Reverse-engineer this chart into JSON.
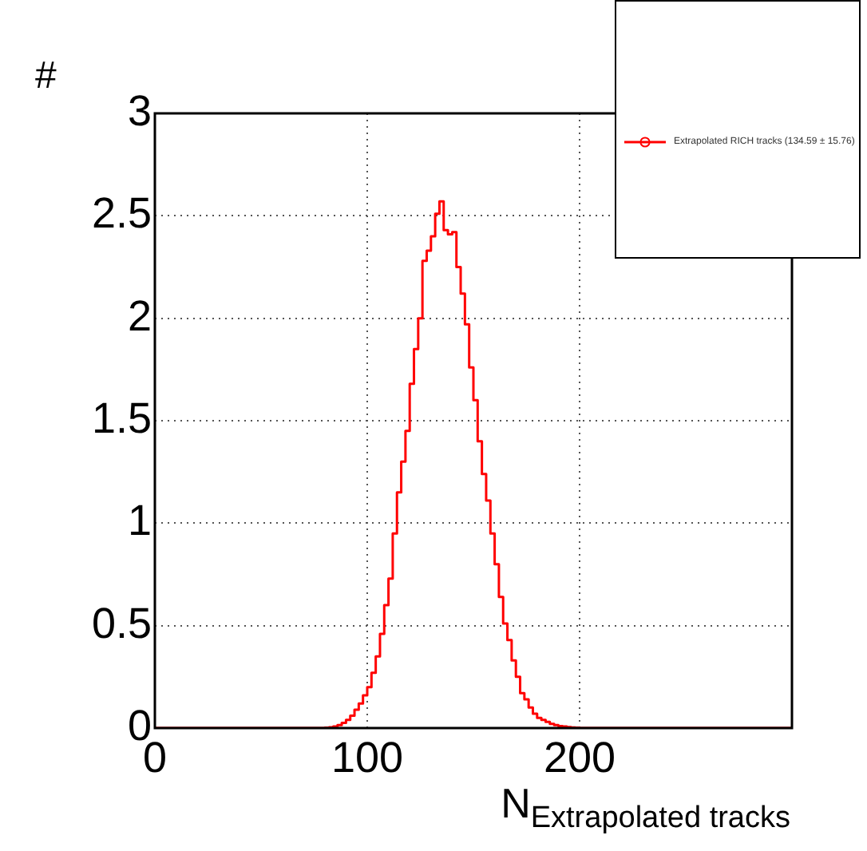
{
  "chart_data": {
    "type": "histogram",
    "xlabel": "N$_{Extrapolated tracks}$",
    "ylabel": "#",
    "bins": [
      0,
      80,
      82,
      84,
      86,
      88,
      90,
      92,
      94,
      96,
      98,
      100,
      102,
      104,
      106,
      108,
      110,
      112,
      114,
      116,
      118,
      120,
      122,
      124,
      126,
      128,
      130,
      132,
      134,
      136,
      138,
      140,
      142,
      144,
      146,
      148,
      150,
      152,
      154,
      156,
      158,
      160,
      162,
      164,
      166,
      168,
      170,
      172,
      174,
      176,
      178,
      180,
      182,
      184,
      186,
      188,
      190,
      192,
      194,
      196,
      198,
      200,
      300
    ],
    "series": [
      {
        "name": "Extrapolated RICH tracks (134.59 ± 15.76)",
        "color": "#ff0000",
        "values": [
          0,
          0.002,
          0.004,
          0.008,
          0.015,
          0.025,
          0.04,
          0.06,
          0.09,
          0.12,
          0.16,
          0.2,
          0.27,
          0.35,
          0.46,
          0.6,
          0.73,
          0.95,
          1.15,
          1.3,
          1.45,
          1.68,
          1.85,
          2.0,
          2.28,
          2.33,
          2.4,
          2.51,
          2.57,
          2.43,
          2.41,
          2.42,
          2.25,
          2.12,
          1.97,
          1.76,
          1.6,
          1.4,
          1.24,
          1.11,
          0.95,
          0.8,
          0.64,
          0.51,
          0.43,
          0.33,
          0.25,
          0.17,
          0.14,
          0.1,
          0.07,
          0.05,
          0.04,
          0.03,
          0.02,
          0.015,
          0.01,
          0.008,
          0.005,
          0.003,
          0.002,
          0
        ]
      }
    ],
    "xlim": [
      0,
      300
    ],
    "xticks": [
      0,
      100,
      200
    ],
    "ylim": [
      0,
      3
    ],
    "yticks": [
      0,
      0.5,
      1,
      1.5,
      2,
      2.5,
      3
    ],
    "grid": true,
    "legend": "top right"
  }
}
